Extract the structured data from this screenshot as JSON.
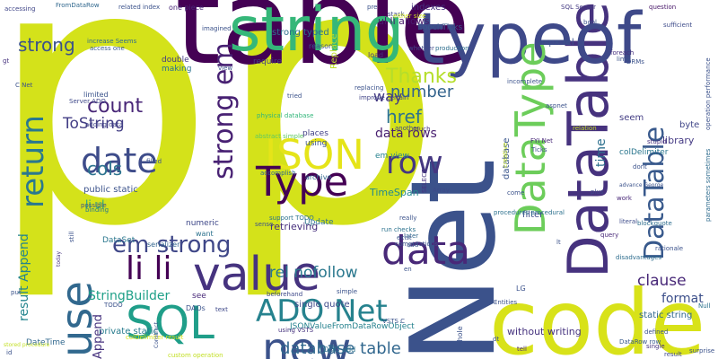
{
  "words": [
    {
      "text": "pp",
      "color": "#d4e21a",
      "vertical": false
    },
    {
      "text": "table",
      "color": "#440154",
      "vertical": false
    },
    {
      "text": "Net",
      "color": "#3b528b",
      "vertical": true
    },
    {
      "text": "code",
      "color": "#d8e219",
      "vertical": false
    },
    {
      "text": "DataTable",
      "color": "#46327e",
      "vertical": true
    },
    {
      "text": "typeof",
      "color": "#3e4989",
      "vertical": false
    },
    {
      "text": "string",
      "color": "#35b779",
      "vertical": false
    },
    {
      "text": "value",
      "color": "#46337f",
      "vertical": false
    },
    {
      "text": "use",
      "color": "#31688e",
      "vertical": true
    },
    {
      "text": "data",
      "color": "#482878",
      "vertical": false
    },
    {
      "text": "new",
      "color": "#3b528b",
      "vertical": false
    },
    {
      "text": "row",
      "color": "#453781",
      "vertical": false
    },
    {
      "text": "SQL",
      "color": "#1f9e89",
      "vertical": false
    },
    {
      "text": "ADO Net",
      "color": "#26828e",
      "vertical": false
    },
    {
      "text": "date",
      "color": "#3e4c8a",
      "vertical": false
    },
    {
      "text": "JSON",
      "color": "#e5e419",
      "vertical": false
    },
    {
      "text": "Type",
      "color": "#440154",
      "vertical": false
    },
    {
      "text": "DataType",
      "color": "#6ccd5a",
      "vertical": true
    },
    {
      "text": "return",
      "color": "#2a788e",
      "vertical": true
    },
    {
      "text": "li li",
      "color": "#440154",
      "vertical": false
    },
    {
      "text": "em strong",
      "color": "#3f4788",
      "vertical": false
    },
    {
      "text": "strong em",
      "color": "#482173",
      "vertical": true
    },
    {
      "text": "count",
      "color": "#482677",
      "vertical": false
    },
    {
      "text": "strong",
      "color": "#3b528b",
      "vertical": false
    },
    {
      "text": "cols",
      "color": "#2c738e",
      "vertical": false
    },
    {
      "text": "ToString",
      "color": "#433e85",
      "vertical": false
    },
    {
      "text": "href",
      "color": "#2c728e",
      "vertical": false
    },
    {
      "text": "number",
      "color": "#33638d",
      "vertical": false
    },
    {
      "text": "Thanks",
      "color": "#b5de2b",
      "vertical": false
    },
    {
      "text": "database table",
      "color": "#31678e",
      "vertical": false
    },
    {
      "text": "rel nofollow",
      "color": "#2a788e",
      "vertical": false
    },
    {
      "text": "clause",
      "color": "#482878",
      "vertical": false
    },
    {
      "text": "result Append",
      "color": "#25858e",
      "vertical": true
    },
    {
      "text": "way",
      "color": "#443a83",
      "vertical": false
    },
    {
      "text": "format",
      "color": "#3c4f8a",
      "vertical": false
    },
    {
      "text": "StringBuilder",
      "color": "#1fa088",
      "vertical": false
    },
    {
      "text": "indexes",
      "color": "#46307e",
      "vertical": false
    },
    {
      "text": "DataTable",
      "color": "#38598c",
      "vertical": true
    },
    {
      "text": "data rows",
      "color": "#481f70",
      "vertical": false
    },
    {
      "text": "database",
      "color": "#39558c",
      "vertical": true
    },
    {
      "text": "time",
      "color": "#2d708e",
      "vertical": true
    },
    {
      "text": "filter",
      "color": "#3e4a89",
      "vertical": false
    },
    {
      "text": "static string",
      "color": "#31688e",
      "vertical": false
    },
    {
      "text": "private static",
      "color": "#287c8e",
      "vertical": false
    },
    {
      "text": "numeric",
      "color": "#3f4889",
      "vertical": false
    },
    {
      "text": "library",
      "color": "#443983",
      "vertical": false
    },
    {
      "text": "colDelimiter",
      "color": "#2a768e",
      "vertical": false
    },
    {
      "text": "byte",
      "color": "#404688",
      "vertical": false
    },
    {
      "text": "seem",
      "color": "#433d84",
      "vertical": false
    },
    {
      "text": "Append",
      "color": "#46327e",
      "vertical": true
    },
    {
      "text": "retrieving",
      "color": "#472f7d",
      "vertical": false
    },
    {
      "text": "TimeSpan",
      "color": "#23898e",
      "vertical": false
    },
    {
      "text": "public static",
      "color": "#3b528b",
      "vertical": false
    },
    {
      "text": "li ul",
      "color": "#22a785",
      "vertical": false
    },
    {
      "text": "ul li allows",
      "color": "#481b6d",
      "vertical": false
    },
    {
      "text": "strong typed",
      "color": "#2e6f8e",
      "vertical": false
    },
    {
      "text": "aspx rel",
      "color": "#3b518b",
      "vertical": false
    },
    {
      "text": "EpochTicks",
      "color": "#38588c",
      "vertical": false
    },
    {
      "text": "without writing",
      "color": "#46337f",
      "vertical": false
    },
    {
      "text": "single quote",
      "color": "#3e4989",
      "vertical": false
    },
    {
      "text": "Update",
      "color": "#2c728e",
      "vertical": false
    },
    {
      "text": "places",
      "color": "#424086",
      "vertical": false
    },
    {
      "text": "using",
      "color": "#3a548c",
      "vertical": false
    },
    {
      "text": "em view",
      "color": "#26818e",
      "vertical": false
    },
    {
      "text": "JSONValueFromDataRowObject",
      "color": "#26828e",
      "vertical": false
    },
    {
      "text": "DataSet",
      "color": "#2a778e",
      "vertical": false
    },
    {
      "text": "serializer",
      "color": "#32648e",
      "vertical": false
    },
    {
      "text": "limited",
      "color": "#3a538b",
      "vertical": false
    },
    {
      "text": "adding data",
      "color": "#414487",
      "vertical": false
    },
    {
      "text": "possible",
      "color": "#3d4e8a",
      "vertical": false
    },
    {
      "text": "binding",
      "color": "#2a788e",
      "vertical": false
    },
    {
      "text": "DateTime",
      "color": "#31688e",
      "vertical": false
    },
    {
      "text": "stored procedure",
      "color": "#c2df23",
      "vertical": false
    },
    {
      "text": "Server ADO",
      "color": "#3f4889",
      "vertical": false
    },
    {
      "text": "improve certain",
      "color": "#414487",
      "vertical": false
    },
    {
      "text": "procedures procedural",
      "color": "#2c718e",
      "vertical": false
    },
    {
      "text": "advance George",
      "color": "#3b528b",
      "vertical": false
    },
    {
      "text": "blockquote",
      "color": "#2e6e8e",
      "vertical": false
    },
    {
      "text": "disadvantages",
      "color": "#2e6d8e",
      "vertical": false
    },
    {
      "text": "rationale",
      "color": "#3b528b",
      "vertical": false
    },
    {
      "text": "DataRow row",
      "color": "#38598c",
      "vertical": false
    },
    {
      "text": "SQL Server",
      "color": "#443a83",
      "vertical": false
    },
    {
      "text": "question",
      "color": "#481769",
      "vertical": false
    },
    {
      "text": "sufficient",
      "color": "#3e4c8a",
      "vertical": false
    },
    {
      "text": "foreach",
      "color": "#46307e",
      "vertical": false
    },
    {
      "text": "limit",
      "color": "#3b528b",
      "vertical": false
    },
    {
      "text": "operation performance",
      "color": "#3b518b",
      "vertical": true
    },
    {
      "text": "parameters sometimes",
      "color": "#2f6c8e",
      "vertical": true
    },
    {
      "text": "accessing",
      "color": "#404688",
      "vertical": false
    },
    {
      "text": "FromDataRow",
      "color": "#31688e",
      "vertical": false
    },
    {
      "text": "related index",
      "color": "#3b528b",
      "vertical": false
    },
    {
      "text": "one piece",
      "color": "#482878",
      "vertical": false
    },
    {
      "text": "access one",
      "color": "#38598c",
      "vertical": false
    },
    {
      "text": "increase Seems",
      "color": "#2f6b8e",
      "vertical": false
    },
    {
      "text": "imagined",
      "color": "#3b528b",
      "vertical": false
    },
    {
      "text": "double",
      "color": "#443983",
      "vertical": false
    },
    {
      "text": "making",
      "color": "#2c728e",
      "vertical": false
    },
    {
      "text": "require",
      "color": "#433e85",
      "vertical": false
    },
    {
      "text": "reason",
      "color": "#3b528b",
      "vertical": false
    },
    {
      "text": "Replace",
      "color": "#bddf26",
      "vertical": true
    },
    {
      "text": "replacing",
      "color": "#3b528b",
      "vertical": false
    },
    {
      "text": "load",
      "color": "#46327e",
      "vertical": false
    },
    {
      "text": "stack",
      "color": "#3e4989",
      "vertical": false
    },
    {
      "text": "either size",
      "color": "#d0e11c",
      "vertical": false
    },
    {
      "text": "whether",
      "color": "#3f4889",
      "vertical": false
    },
    {
      "text": "incomplete",
      "color": "#3b528b",
      "vertical": false
    },
    {
      "text": "production",
      "color": "#2e6e8e",
      "vertical": false
    },
    {
      "text": "physical database",
      "color": "#32b67a",
      "vertical": false
    },
    {
      "text": "accomplish",
      "color": "#31688e",
      "vertical": false
    },
    {
      "text": "abstract simple",
      "color": "#5ec962",
      "vertical": false
    },
    {
      "text": "tried",
      "color": "#3b528b",
      "vertical": false
    },
    {
      "text": "another",
      "color": "#3f4788",
      "vertical": false
    },
    {
      "text": "much",
      "color": "#46327e",
      "vertical": false
    },
    {
      "text": "aspnet",
      "color": "#3b528b",
      "vertical": false
    },
    {
      "text": "FYI Net",
      "color": "#482878",
      "vertical": false
    },
    {
      "text": "Ticks",
      "color": "#3b528b",
      "vertical": false
    },
    {
      "text": "stupid",
      "color": "#46307e",
      "vertical": false
    },
    {
      "text": "dont",
      "color": "#3b528b",
      "vertical": false
    },
    {
      "text": "plus",
      "color": "#3e4989",
      "vertical": false
    },
    {
      "text": "come",
      "color": "#3b528b",
      "vertical": false
    },
    {
      "text": "work",
      "color": "#482878",
      "vertical": false
    },
    {
      "text": "archive",
      "color": "#31688e",
      "vertical": false
    },
    {
      "text": "support TODO",
      "color": "#2c728e",
      "vertical": false
    },
    {
      "text": "sense",
      "color": "#3b528b",
      "vertical": false
    },
    {
      "text": "Array",
      "color": "#3e4989",
      "vertical": false
    },
    {
      "text": "SELECT",
      "color": "#46327e",
      "vertical": true
    },
    {
      "text": "run checks",
      "color": "#2c728e",
      "vertical": false
    },
    {
      "text": "really",
      "color": "#3b528b",
      "vertical": false
    },
    {
      "text": "query",
      "color": "#482878",
      "vertical": false
    },
    {
      "text": "literal",
      "color": "#3e4c8a",
      "vertical": false
    },
    {
      "text": "lt",
      "color": "#3b528b",
      "vertical": false
    },
    {
      "text": "later",
      "color": "#31688e",
      "vertical": false
    },
    {
      "text": "exist",
      "color": "#3b528b",
      "vertical": false
    },
    {
      "text": "computations",
      "color": "#3b528b",
      "vertical": false
    },
    {
      "text": "beforehand",
      "color": "#3e4989",
      "vertical": false
    },
    {
      "text": "today",
      "color": "#46327e",
      "vertical": true
    },
    {
      "text": "put",
      "color": "#3b528b",
      "vertical": false
    },
    {
      "text": "want",
      "color": "#2c728e",
      "vertical": false
    },
    {
      "text": "still",
      "color": "#3b528b",
      "vertical": true
    },
    {
      "text": "see",
      "color": "#482878",
      "vertical": false
    },
    {
      "text": "TODO",
      "color": "#3b528b",
      "vertical": false
    },
    {
      "text": "DAOs",
      "color": "#3b528b",
      "vertical": false
    },
    {
      "text": "text",
      "color": "#3e4989",
      "vertical": false
    },
    {
      "text": "simple",
      "color": "#3b528b",
      "vertical": false
    },
    {
      "text": "using VSTS",
      "color": "#46327e",
      "vertical": false
    },
    {
      "text": "TODO add",
      "color": "#2c728e",
      "vertical": false
    },
    {
      "text": "whole",
      "color": "#3b528b",
      "vertical": true
    },
    {
      "text": "dt",
      "color": "#3b528b",
      "vertical": false
    },
    {
      "text": "tell",
      "color": "#482878",
      "vertical": false
    },
    {
      "text": "Entities",
      "color": "#3b528b",
      "vertical": false
    },
    {
      "text": "result",
      "color": "#3e4989",
      "vertical": false
    },
    {
      "text": "surprise",
      "color": "#3b528b",
      "vertical": false
    },
    {
      "text": "defined",
      "color": "#3b528b",
      "vertical": false
    },
    {
      "text": "single",
      "color": "#46327e",
      "vertical": false
    },
    {
      "text": "colDelimiter result",
      "color": "#d8e219",
      "vertical": false
    },
    {
      "text": "custom operation",
      "color": "#c2df23",
      "vertical": false
    },
    {
      "text": "Construct",
      "color": "#3b528b",
      "vertical": true
    },
    {
      "text": "id",
      "color": "#3b528b",
      "vertical": false
    },
    {
      "text": "C Net",
      "color": "#3b528b",
      "vertical": false
    },
    {
      "text": "gt",
      "color": "#46327e",
      "vertical": false
    },
    {
      "text": "view",
      "color": "#3b528b",
      "vertical": false
    },
    {
      "text": "pre",
      "color": "#3b528b",
      "vertical": false
    },
    {
      "text": "bool",
      "color": "#3b528b",
      "vertical": false
    },
    {
      "text": "DRMs",
      "color": "#3b528b",
      "vertical": false
    },
    {
      "text": "relation",
      "color": "#c2df23",
      "vertical": false
    },
    {
      "text": "creative",
      "color": "#c2df23",
      "vertical": true
    },
    {
      "text": "Null",
      "color": "#2c728e",
      "vertical": false
    },
    {
      "text": "filled",
      "color": "#3b528b",
      "vertical": false
    },
    {
      "text": "en",
      "color": "#3b528b",
      "vertical": false
    },
    {
      "text": "add",
      "color": "#3b528b",
      "vertical": false
    },
    {
      "text": "VSTS C",
      "color": "#3b528b",
      "vertical": false
    },
    {
      "text": "LG",
      "color": "#3b528b",
      "vertical": false
    }
  ]
}
